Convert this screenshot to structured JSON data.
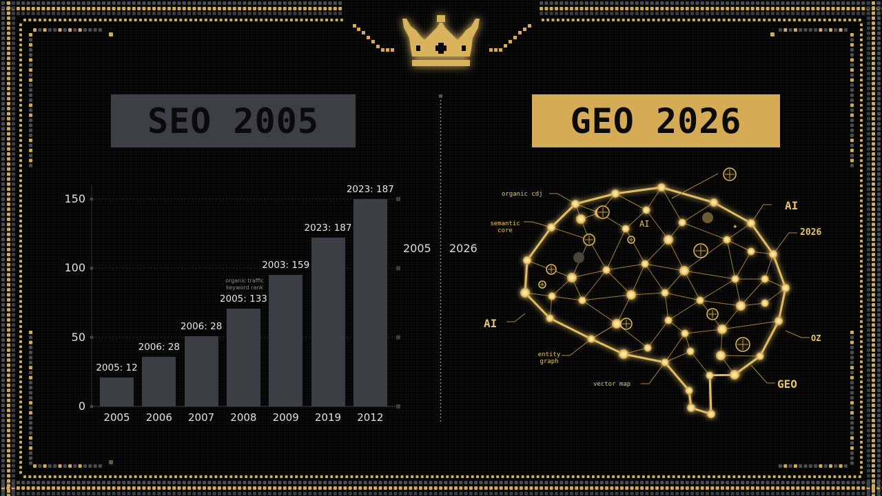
{
  "header": {
    "crown_icon": "crown-icon"
  },
  "left_panel": {
    "title": "SEO 2005",
    "era_label": "2005",
    "annotation_line1": "organic traffic",
    "annotation_line2": "keyword rank"
  },
  "right_panel": {
    "title": "GEO 2026",
    "era_label": "2026",
    "brain_labels": {
      "organic": "organic cdj",
      "semantic_line1": "semantic",
      "semantic_line2": "core",
      "ai_center": "AI",
      "ai_right": "AI",
      "year_right": "2026",
      "ai_left": "AI",
      "entity_line1": "entity",
      "entity_line2": "graph",
      "vector": "vector map",
      "oz": "OZ",
      "geo": "GEO"
    }
  },
  "colors": {
    "background": "#050505",
    "gold": "#d5ac55",
    "bar_gray": "#3b3e42",
    "seo_title_bg": "#3c3f43"
  },
  "chart_data": {
    "type": "bar",
    "title": "SEO 2005",
    "xlabel": "",
    "ylabel": "",
    "ylim": [
      0,
      150
    ],
    "yticks": [
      0,
      50,
      100,
      150
    ],
    "grid": true,
    "categories": [
      "2005",
      "2006",
      "2007",
      "2008",
      "2009",
      "2019",
      "2012"
    ],
    "values": [
      21,
      36,
      51,
      71,
      95,
      122,
      150
    ],
    "data_labels": [
      "2005: 12",
      "2006: 28",
      "2006: 28",
      "2005: 133",
      "2003: 159",
      "2023: 187",
      "2023: 187"
    ],
    "annotations": [
      "organic traffic",
      "keyword rank"
    ]
  }
}
